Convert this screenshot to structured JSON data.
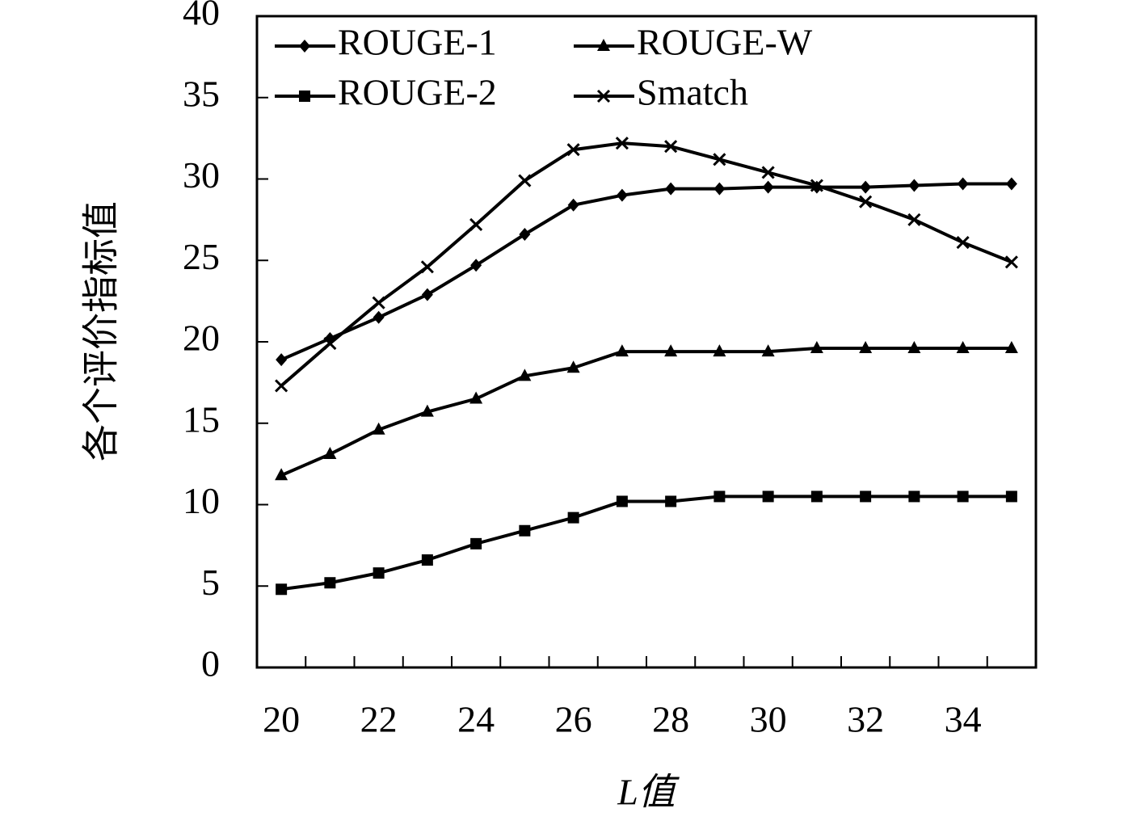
{
  "chart_data": {
    "type": "line",
    "xlabel": "L值",
    "ylabel": "各个评价指标值",
    "categories": [
      "20",
      null,
      "22",
      null,
      "24",
      null,
      "26",
      null,
      "28",
      null,
      "30",
      null,
      "32",
      null,
      "34",
      null
    ],
    "series": [
      {
        "name": "ROUGE-1",
        "color": "#000000",
        "marker": "diamond",
        "values": [
          18.9,
          20.2,
          21.5,
          22.9,
          24.7,
          26.6,
          28.4,
          29.0,
          29.4,
          29.4,
          29.5,
          29.5,
          29.5,
          29.6,
          29.7,
          29.7
        ]
      },
      {
        "name": "ROUGE-W",
        "color": "#000000",
        "marker": "triangle",
        "values": [
          11.8,
          13.1,
          14.6,
          15.7,
          16.5,
          17.9,
          18.4,
          19.4,
          19.4,
          19.4,
          19.4,
          19.6,
          19.6,
          19.6,
          19.6,
          19.6
        ]
      },
      {
        "name": "ROUGE-2",
        "color": "#000000",
        "marker": "square",
        "values": [
          4.8,
          5.2,
          5.8,
          6.6,
          7.6,
          8.4,
          9.2,
          10.2,
          10.2,
          10.5,
          10.5,
          10.5,
          10.5,
          10.5,
          10.5,
          10.5
        ]
      },
      {
        "name": "Smatch",
        "color": "#000000",
        "marker": "x",
        "values": [
          17.3,
          19.9,
          22.4,
          24.6,
          27.2,
          29.9,
          31.8,
          32.2,
          32.0,
          31.2,
          30.4,
          29.6,
          28.6,
          27.5,
          26.1,
          24.9
        ]
      }
    ],
    "ylim": [
      0,
      40
    ],
    "yticks": [
      0,
      5,
      10,
      15,
      20,
      25,
      30,
      35,
      40
    ],
    "legend": "upper left",
    "grid": false
  }
}
